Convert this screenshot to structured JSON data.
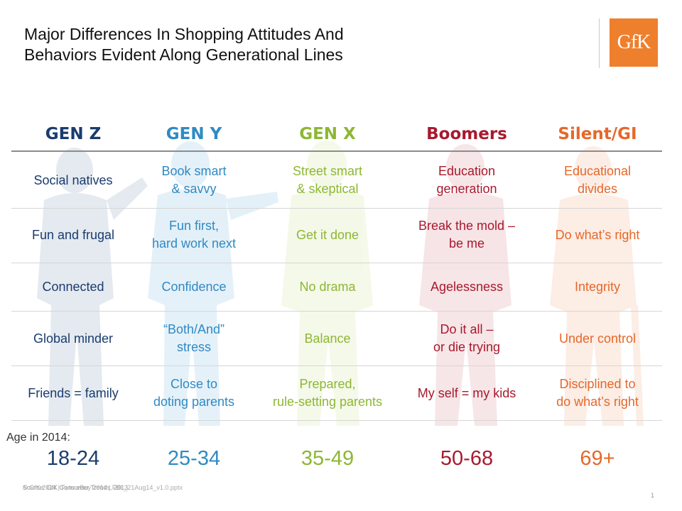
{
  "slide": {
    "title_line1": "Major Differences In Shopping Attitudes And",
    "title_line2": "Behaviors Evident Along Generational Lines",
    "logo_text": "GfK",
    "age_label": "Age in 2014:",
    "footer_source": "Source: GfK Consumer Trends, 2013",
    "footer_file": "© GfK 2014 | FutureBuy 2014 | FBL_21Aug14_v1.0.pptx",
    "page_number": "1"
  },
  "colors": {
    "gen_z": "#1a3c6e",
    "gen_y": "#2f8ac4",
    "gen_x": "#8db733",
    "boomers": "#a8192e",
    "silent": "#e5682a",
    "first_col_text": "#1a3c6e"
  },
  "generations": [
    {
      "name": "GEN Z",
      "age": "18-24",
      "traits": [
        "Social natives",
        "Fun and frugal",
        "Connected",
        "Global minder",
        "Friends = family"
      ]
    },
    {
      "name": "GEN Y",
      "age": "25-34",
      "traits": [
        "Book smart\n& savvy",
        "Fun first,\nhard work next",
        "Confidence",
        "“Both/And”\nstress",
        "Close to\ndoting parents"
      ]
    },
    {
      "name": "GEN X",
      "age": "35-49",
      "traits": [
        "Street smart\n& skeptical",
        "Get it done",
        "No drama",
        "Balance",
        "Prepared,\nrule-setting parents"
      ]
    },
    {
      "name": "Boomers",
      "age": "50-68",
      "traits": [
        "Education\ngeneration",
        "Break the mold –\nbe me",
        "Agelessness",
        "Do it all –\nor die trying",
        "My self = my kids"
      ]
    },
    {
      "name": "Silent/GI",
      "age": "69+",
      "traits": [
        "Educational\ndivides",
        "Do what’s right",
        "Integrity",
        "Under control",
        "Disciplined to\ndo what’s right"
      ]
    }
  ]
}
